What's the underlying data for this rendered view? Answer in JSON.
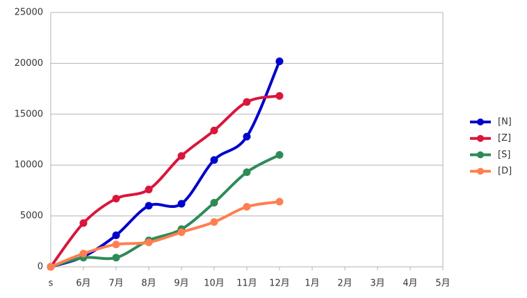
{
  "chart_data": {
    "type": "line",
    "categories": [
      "s",
      "6月",
      "7月",
      "8月",
      "9月",
      "10月",
      "11月",
      "12月",
      "1月",
      "2月",
      "3月",
      "4月",
      "5月"
    ],
    "series": [
      {
        "name": "[N]",
        "color": "#0000cc",
        "values": [
          0,
          1000,
          3100,
          6000,
          6200,
          10500,
          12800,
          20200,
          null,
          null,
          null,
          null,
          null
        ]
      },
      {
        "name": "[Z]",
        "color": "#d9163c",
        "values": [
          0,
          4300,
          6700,
          7600,
          10900,
          13400,
          16200,
          16800,
          null,
          null,
          null,
          null,
          null
        ]
      },
      {
        "name": "[S]",
        "color": "#2e8b57",
        "values": [
          0,
          900,
          900,
          2600,
          3700,
          6300,
          9300,
          11000,
          null,
          null,
          null,
          null,
          null
        ]
      },
      {
        "name": "[D]",
        "color": "#ff7f50",
        "values": [
          0,
          1300,
          2200,
          2400,
          3400,
          4400,
          5900,
          6400,
          null,
          null,
          null,
          null,
          null
        ]
      }
    ],
    "ylim": [
      0,
      25000
    ],
    "yticks": [
      0,
      5000,
      10000,
      15000,
      20000,
      25000
    ],
    "grid": true,
    "smooth": true,
    "legend": "right"
  }
}
